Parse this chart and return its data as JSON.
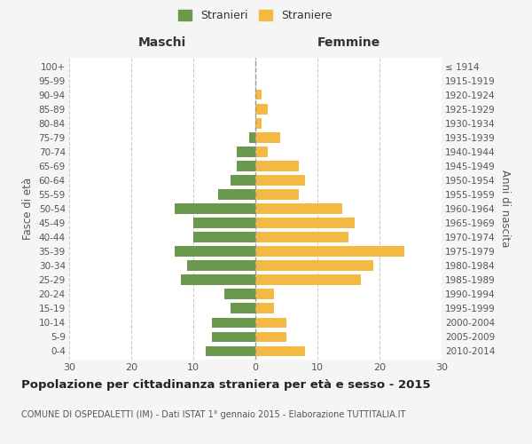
{
  "age_groups": [
    "100+",
    "95-99",
    "90-94",
    "85-89",
    "80-84",
    "75-79",
    "70-74",
    "65-69",
    "60-64",
    "55-59",
    "50-54",
    "45-49",
    "40-44",
    "35-39",
    "30-34",
    "25-29",
    "20-24",
    "15-19",
    "10-14",
    "5-9",
    "0-4"
  ],
  "birth_years": [
    "≤ 1914",
    "1915-1919",
    "1920-1924",
    "1925-1929",
    "1930-1934",
    "1935-1939",
    "1940-1944",
    "1945-1949",
    "1950-1954",
    "1955-1959",
    "1960-1964",
    "1965-1969",
    "1970-1974",
    "1975-1979",
    "1980-1984",
    "1985-1989",
    "1990-1994",
    "1995-1999",
    "2000-2004",
    "2005-2009",
    "2010-2014"
  ],
  "maschi": [
    0,
    0,
    0,
    0,
    0,
    1,
    3,
    3,
    4,
    6,
    13,
    10,
    10,
    13,
    11,
    12,
    5,
    4,
    7,
    7,
    8
  ],
  "femmine": [
    0,
    0,
    1,
    2,
    1,
    4,
    2,
    7,
    8,
    7,
    14,
    16,
    15,
    24,
    19,
    17,
    3,
    3,
    5,
    5,
    8
  ],
  "maschi_color": "#6a994e",
  "femmine_color": "#f4b942",
  "background_color": "#f5f5f5",
  "bar_bg_color": "#ffffff",
  "title": "Popolazione per cittadinanza straniera per età e sesso - 2015",
  "subtitle": "COMUNE DI OSPEDALETTI (IM) - Dati ISTAT 1° gennaio 2015 - Elaborazione TUTTITALIA.IT",
  "xlabel_left": "Maschi",
  "xlabel_right": "Femmine",
  "ylabel_left": "Fasce di età",
  "ylabel_right": "Anni di nascita",
  "legend_maschi": "Stranieri",
  "legend_femmine": "Straniere",
  "xlim": 30
}
